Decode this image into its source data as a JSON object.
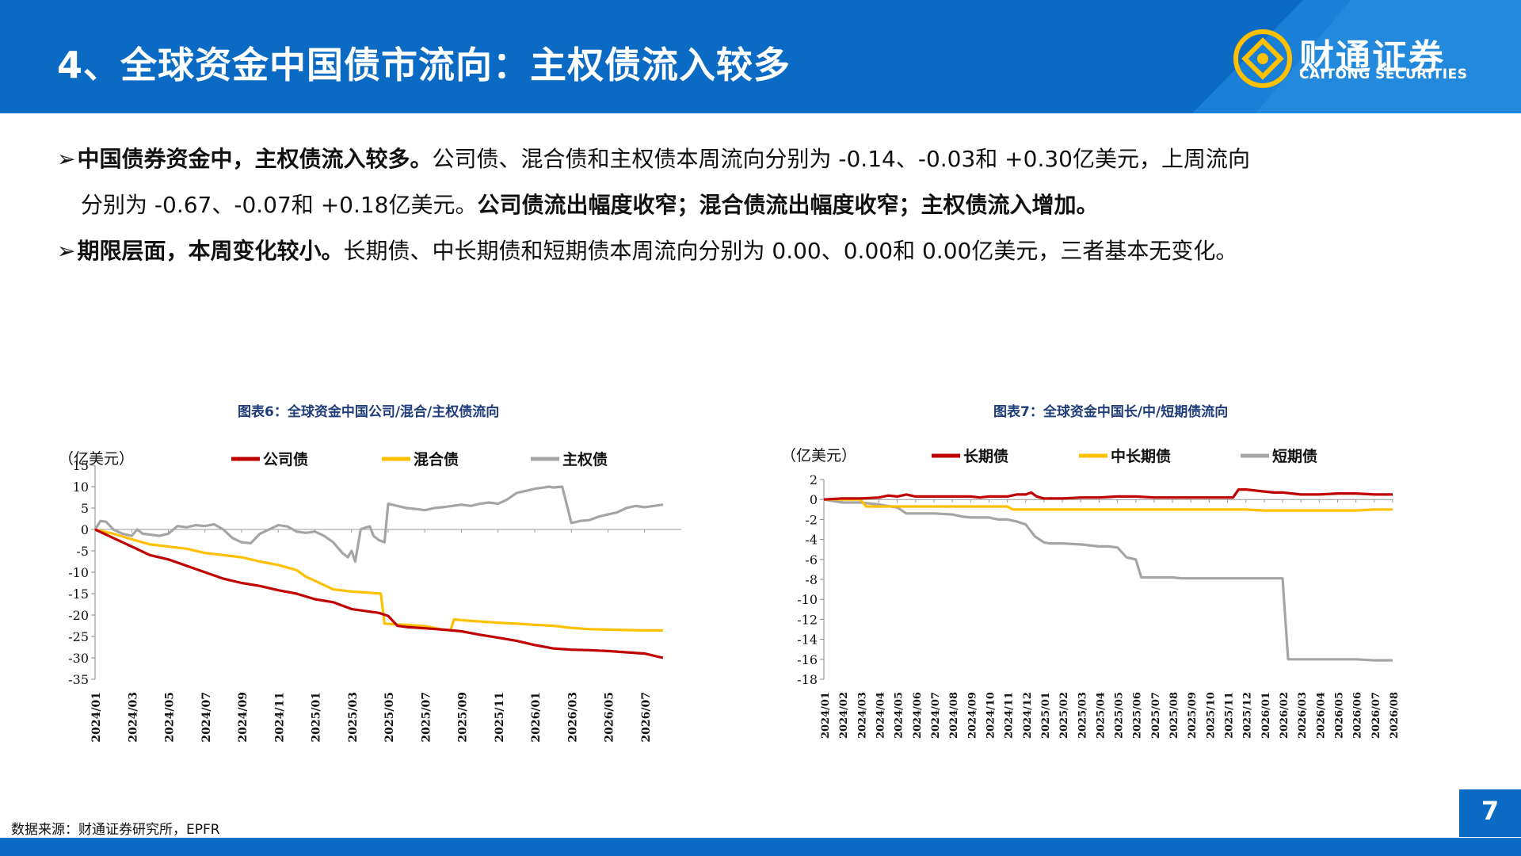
{
  "header": {
    "title": "4、全球资金中国债市流向：主权债流入较多",
    "logo_cn": "财通证券",
    "logo_en": "CAITONG SECURITIES"
  },
  "bullets": {
    "b1_bold": "中国债券资金中，主权债流入较多。",
    "b1_text": "公司债、混合债和主权债本周流向分别为 -0.14、-0.03和 +0.30亿美元，上周流向",
    "b1_cont": "分别为 -0.67、-0.07和 +0.18亿美元。",
    "b1_bold2": "公司债流出幅度收窄；混合债流出幅度收窄；主权债流入增加。",
    "b2_bold": "期限层面，本周变化较小。",
    "b2_text": "长期债、中长期债和短期债本周流向分别为 0.00、0.00和 0.00亿美元，三者基本无变化。"
  },
  "source": "数据来源：财通证券研究所，EPFR",
  "page_number": "7",
  "colors": {
    "brand": "#0b6bc4",
    "red": "#c00000",
    "yellow": "#ffc000",
    "gray": "#a5a5a5"
  },
  "chart_data": [
    {
      "type": "line",
      "title": "图表6：全球资金中国公司/混合/主权债流向",
      "unit": "（亿美元）",
      "ylim": [
        -35,
        15
      ],
      "yticks": [
        15,
        10,
        5,
        0,
        -5,
        -10,
        -15,
        -20,
        -25,
        -30,
        -35
      ],
      "xlim": [
        0,
        32
      ],
      "xticks": [
        "2024/01",
        "2024/03",
        "2024/05",
        "2024/07",
        "2024/09",
        "2024/11",
        "2025/01",
        "2025/03",
        "2025/05",
        "2025/07",
        "2025/09",
        "2025/11",
        "2026/01",
        "2026/03",
        "2026/05",
        "2026/07"
      ],
      "legend": "top",
      "series": [
        {
          "name": "公司债",
          "color": "#c00000",
          "x": [
            0,
            1,
            2,
            3,
            4,
            5,
            6,
            7,
            8,
            9,
            10,
            11,
            12,
            13,
            14,
            15,
            15.5,
            16,
            16.5,
            17,
            18,
            19,
            20,
            21,
            22,
            23,
            24,
            25,
            26,
            27,
            28,
            29,
            30,
            31
          ],
          "y": [
            0,
            -2,
            -4,
            -6,
            -7,
            -8.5,
            -10,
            -11.5,
            -12.5,
            -13.2,
            -14.2,
            -15,
            -16.3,
            -17,
            -18.6,
            -19.2,
            -19.5,
            -20.2,
            -22.5,
            -22.8,
            -23.1,
            -23.4,
            -23.8,
            -24.6,
            -25.3,
            -26,
            -27,
            -27.8,
            -28.1,
            -28.2,
            -28.4,
            -28.7,
            -29,
            -30
          ]
        },
        {
          "name": "混合债",
          "color": "#ffc000",
          "x": [
            0,
            1,
            2,
            3,
            4,
            5,
            6,
            7,
            8,
            9,
            10,
            11,
            11.5,
            12,
            13,
            14,
            15,
            15.6,
            15.8,
            16.5,
            17,
            18,
            19,
            19.4,
            19.6,
            20,
            21,
            22,
            23,
            24,
            25,
            26,
            27,
            28,
            29,
            30,
            31
          ],
          "y": [
            0,
            -1,
            -2.3,
            -3.5,
            -4,
            -4.5,
            -5.5,
            -6,
            -6.5,
            -7.5,
            -8.3,
            -9.5,
            -11,
            -12,
            -14,
            -14.5,
            -14.8,
            -15,
            -22,
            -22.2,
            -22.3,
            -22.6,
            -23.4,
            -23.6,
            -21,
            -21.2,
            -21.5,
            -21.8,
            -22,
            -22.3,
            -22.5,
            -23,
            -23.3,
            -23.4,
            -23.5,
            -23.6,
            -23.6
          ]
        },
        {
          "name": "主权债",
          "color": "#a5a5a5",
          "x": [
            0,
            0.3,
            0.6,
            1,
            1.5,
            2,
            2.3,
            2.6,
            3,
            3.5,
            4,
            4.5,
            5,
            5.5,
            6,
            6.5,
            7,
            7.5,
            8,
            8.5,
            9,
            9.5,
            10,
            10.5,
            11,
            11.5,
            12,
            12.5,
            13,
            13.5,
            13.8,
            14,
            14.2,
            14.5,
            14.8,
            15,
            15.2,
            15.5,
            15.8,
            16,
            16.5,
            17,
            17.5,
            18,
            18.5,
            19,
            19.5,
            20,
            20.5,
            21,
            21.5,
            22,
            22.5,
            23,
            23.5,
            24,
            24.5,
            24.8,
            25,
            25.5,
            26,
            26.5,
            27,
            27.5,
            28,
            28.5,
            29,
            29.5,
            30,
            30.5,
            31
          ],
          "y": [
            0,
            2,
            1.8,
            0,
            -1,
            -1.5,
            0,
            -1,
            -1.2,
            -1.5,
            -1,
            0.8,
            0.5,
            1,
            0.8,
            1.2,
            0,
            -2,
            -3,
            -3.2,
            -1,
            0,
            1,
            0.7,
            -0.5,
            -0.8,
            -0.5,
            -1.5,
            -3,
            -5.5,
            -6.5,
            -5,
            -7.5,
            0,
            0.5,
            0.7,
            -1.5,
            -2.5,
            -3,
            6,
            5.5,
            5,
            4.8,
            4.5,
            5,
            5.2,
            5.5,
            5.8,
            5.5,
            6,
            6.3,
            6,
            7,
            8.5,
            9,
            9.5,
            9.8,
            10,
            9.8,
            10,
            1.5,
            2,
            2.2,
            3,
            3.5,
            4,
            5,
            5.5,
            5.2,
            5.5,
            5.8
          ]
        }
      ]
    },
    {
      "type": "line",
      "title": "图表7：全球资金中国长/中/短期债流向",
      "unit": "（亿美元）",
      "ylim": [
        -18,
        2
      ],
      "yticks": [
        2,
        0,
        -2,
        -4,
        -6,
        -8,
        -10,
        -12,
        -14,
        -16,
        -18
      ],
      "xlim": [
        0,
        31
      ],
      "xticks": [
        "2024/01",
        "2024/02",
        "2024/03",
        "2024/04",
        "2024/05",
        "2024/06",
        "2024/07",
        "2024/08",
        "2024/09",
        "2024/10",
        "2024/11",
        "2024/12",
        "2025/01",
        "2025/02",
        "2025/03",
        "2025/04",
        "2025/05",
        "2025/06",
        "2025/07",
        "2025/08",
        "2025/09",
        "2025/10",
        "2025/11",
        "2025/12",
        "2026/01",
        "2026/02",
        "2026/03",
        "2026/04",
        "2026/05",
        "2026/06",
        "2026/07",
        "2026/08"
      ],
      "legend": "top",
      "series": [
        {
          "name": "长期债",
          "color": "#c00000",
          "x": [
            0,
            1,
            2,
            3,
            3.5,
            4,
            4.5,
            5,
            6,
            7,
            8,
            8.5,
            9,
            10,
            10.5,
            11,
            11.3,
            11.6,
            12,
            13,
            14,
            15,
            16,
            17,
            18,
            19,
            20,
            21,
            22,
            22.3,
            22.6,
            23,
            24,
            24.5,
            25,
            26,
            27,
            28,
            29,
            30,
            31
          ],
          "y": [
            0,
            0.1,
            0.1,
            0.2,
            0.4,
            0.3,
            0.5,
            0.3,
            0.3,
            0.3,
            0.3,
            0.2,
            0.3,
            0.3,
            0.5,
            0.5,
            0.7,
            0.3,
            0.1,
            0.1,
            0.2,
            0.2,
            0.3,
            0.3,
            0.2,
            0.2,
            0.2,
            0.2,
            0.2,
            0.2,
            1,
            1,
            0.8,
            0.7,
            0.7,
            0.5,
            0.5,
            0.6,
            0.6,
            0.5,
            0.5
          ]
        },
        {
          "name": "中长期债",
          "color": "#ffc000",
          "x": [
            0,
            1,
            2,
            2.3,
            3,
            4,
            5,
            6,
            7,
            8,
            9,
            10,
            10.3,
            11,
            12,
            13,
            14,
            15,
            16,
            17,
            18,
            19,
            20,
            21,
            22,
            23,
            24,
            25,
            26,
            27,
            28,
            29,
            30,
            31
          ],
          "y": [
            0,
            0,
            0,
            -0.7,
            -0.7,
            -0.7,
            -0.7,
            -0.7,
            -0.7,
            -0.7,
            -0.7,
            -0.7,
            -1,
            -1,
            -1,
            -1,
            -1,
            -1,
            -1,
            -1,
            -1,
            -1,
            -1,
            -1,
            -1,
            -1,
            -1.1,
            -1.1,
            -1.1,
            -1.1,
            -1.1,
            -1.1,
            -1,
            -1
          ]
        },
        {
          "name": "短期债",
          "color": "#a5a5a5",
          "x": [
            0,
            1,
            2,
            3,
            4,
            4.5,
            5,
            6,
            7,
            7.5,
            8,
            9,
            9.5,
            10,
            10.5,
            11,
            11.5,
            12,
            12.3,
            12.6,
            13,
            14,
            15,
            15.5,
            16,
            16.5,
            17,
            17.3,
            17.6,
            18,
            19,
            19.5,
            20,
            21,
            22,
            23,
            24,
            25,
            25.3,
            25.6,
            26,
            27,
            28,
            29,
            30,
            31
          ],
          "y": [
            0,
            -0.3,
            -0.3,
            -0.5,
            -0.8,
            -1.4,
            -1.4,
            -1.4,
            -1.5,
            -1.7,
            -1.8,
            -1.8,
            -2.0,
            -2.0,
            -2.2,
            -2.5,
            -3.7,
            -4.3,
            -4.4,
            -4.4,
            -4.4,
            -4.5,
            -4.7,
            -4.7,
            -4.8,
            -5.8,
            -6.0,
            -7.8,
            -7.8,
            -7.8,
            -7.8,
            -7.9,
            -7.9,
            -7.9,
            -7.9,
            -7.9,
            -7.9,
            -7.9,
            -16,
            -16,
            -16,
            -16,
            -16,
            -16,
            -16.1,
            -16.1
          ]
        }
      ]
    }
  ]
}
